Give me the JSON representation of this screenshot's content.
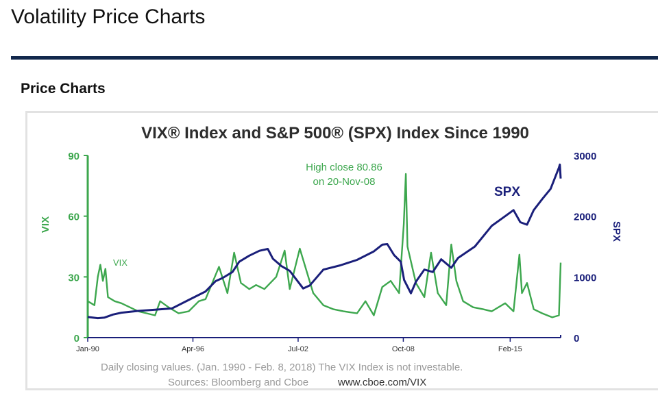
{
  "page": {
    "title": "Volatility Price Charts",
    "section_title": "Price Charts"
  },
  "colors": {
    "vix": "#3da74e",
    "spx": "#1a1f7a",
    "rule": "#12284c"
  },
  "chart_data": {
    "type": "line",
    "title": "VIX® Index and S&P 500® (SPX) Index Since 1990",
    "left_axis": {
      "label": "VIX",
      "min": 0,
      "max": 90,
      "ticks": [
        "0",
        "30",
        "60",
        "90"
      ]
    },
    "right_axis": {
      "label": "SPX",
      "min": 0,
      "max": 3000,
      "ticks": [
        "0",
        "1000",
        "2000",
        "3000"
      ]
    },
    "x_range": [
      1990.0,
      2018.1
    ],
    "x_ticks": [
      {
        "label": "Jan-90",
        "year": 1990.0
      },
      {
        "label": "Apr-96",
        "year": 1996.25
      },
      {
        "label": "Jul-02",
        "year": 2002.5
      },
      {
        "label": "Oct-08",
        "year": 2008.75
      },
      {
        "label": "Feb-15",
        "year": 2015.1
      }
    ],
    "annotation": {
      "line1": "High close 80.86",
      "line2": "on 20-Nov-08",
      "year": 2008.9,
      "value": 80.86
    },
    "series_labels": {
      "vix": "VIX",
      "spx": "SPX"
    },
    "series": [
      {
        "name": "VIX",
        "axis": "left",
        "points": [
          [
            1990.0,
            18
          ],
          [
            1990.4,
            16
          ],
          [
            1990.6,
            30
          ],
          [
            1990.75,
            36
          ],
          [
            1990.9,
            28
          ],
          [
            1991.05,
            34
          ],
          [
            1991.2,
            20
          ],
          [
            1991.6,
            18
          ],
          [
            1992.0,
            17
          ],
          [
            1992.5,
            15
          ],
          [
            1993.0,
            13
          ],
          [
            1993.5,
            12
          ],
          [
            1994.0,
            11
          ],
          [
            1994.3,
            18
          ],
          [
            1994.8,
            15
          ],
          [
            1995.4,
            12
          ],
          [
            1996.0,
            13
          ],
          [
            1996.6,
            18
          ],
          [
            1997.0,
            19
          ],
          [
            1997.8,
            35
          ],
          [
            1998.3,
            22
          ],
          [
            1998.7,
            42
          ],
          [
            1999.1,
            27
          ],
          [
            1999.6,
            24
          ],
          [
            2000.0,
            26
          ],
          [
            2000.5,
            24
          ],
          [
            2001.2,
            30
          ],
          [
            2001.7,
            43
          ],
          [
            2002.0,
            24
          ],
          [
            2002.6,
            44
          ],
          [
            2003.0,
            33
          ],
          [
            2003.4,
            22
          ],
          [
            2004.0,
            16
          ],
          [
            2004.6,
            14
          ],
          [
            2005.2,
            13
          ],
          [
            2006.0,
            12
          ],
          [
            2006.5,
            18
          ],
          [
            2007.0,
            11
          ],
          [
            2007.5,
            25
          ],
          [
            2008.0,
            28
          ],
          [
            2008.5,
            22
          ],
          [
            2008.78,
            56
          ],
          [
            2008.9,
            80.86
          ],
          [
            2009.0,
            45
          ],
          [
            2009.5,
            27
          ],
          [
            2010.0,
            20
          ],
          [
            2010.4,
            42
          ],
          [
            2010.8,
            22
          ],
          [
            2011.3,
            16
          ],
          [
            2011.6,
            46
          ],
          [
            2011.9,
            28
          ],
          [
            2012.3,
            18
          ],
          [
            2012.9,
            15
          ],
          [
            2013.5,
            14
          ],
          [
            2014.0,
            13
          ],
          [
            2014.8,
            17
          ],
          [
            2015.3,
            13
          ],
          [
            2015.65,
            41
          ],
          [
            2015.8,
            22
          ],
          [
            2016.1,
            27
          ],
          [
            2016.5,
            14
          ],
          [
            2017.0,
            12
          ],
          [
            2017.6,
            10
          ],
          [
            2018.0,
            11
          ],
          [
            2018.1,
            37
          ]
        ]
      },
      {
        "name": "SPX",
        "axis": "right",
        "points": [
          [
            1990.0,
            340
          ],
          [
            1990.6,
            320
          ],
          [
            1991.0,
            330
          ],
          [
            1991.5,
            380
          ],
          [
            1992.0,
            410
          ],
          [
            1993.0,
            440
          ],
          [
            1994.0,
            460
          ],
          [
            1995.0,
            480
          ],
          [
            1996.0,
            620
          ],
          [
            1997.0,
            760
          ],
          [
            1997.6,
            930
          ],
          [
            1998.0,
            980
          ],
          [
            1998.6,
            1080
          ],
          [
            1999.0,
            1250
          ],
          [
            1999.6,
            1350
          ],
          [
            2000.2,
            1430
          ],
          [
            2000.7,
            1460
          ],
          [
            2001.0,
            1300
          ],
          [
            2001.5,
            1180
          ],
          [
            2002.0,
            1100
          ],
          [
            2002.5,
            920
          ],
          [
            2002.8,
            810
          ],
          [
            2003.2,
            860
          ],
          [
            2004.0,
            1120
          ],
          [
            2005.0,
            1190
          ],
          [
            2006.0,
            1280
          ],
          [
            2007.0,
            1420
          ],
          [
            2007.5,
            1530
          ],
          [
            2007.8,
            1540
          ],
          [
            2008.2,
            1360
          ],
          [
            2008.6,
            1250
          ],
          [
            2008.8,
            950
          ],
          [
            2009.2,
            730
          ],
          [
            2009.5,
            920
          ],
          [
            2010.0,
            1120
          ],
          [
            2010.5,
            1080
          ],
          [
            2011.0,
            1290
          ],
          [
            2011.6,
            1150
          ],
          [
            2012.0,
            1310
          ],
          [
            2013.0,
            1500
          ],
          [
            2014.0,
            1840
          ],
          [
            2014.8,
            2000
          ],
          [
            2015.3,
            2100
          ],
          [
            2015.7,
            1900
          ],
          [
            2016.1,
            1860
          ],
          [
            2016.5,
            2100
          ],
          [
            2017.0,
            2280
          ],
          [
            2017.5,
            2450
          ],
          [
            2018.0,
            2800
          ],
          [
            2018.05,
            2850
          ],
          [
            2018.1,
            2620
          ]
        ]
      }
    ],
    "footnote": {
      "line1": "Daily closing values.  (Jan. 1990 - Feb. 8, 2018)   The VIX Index is not investable.",
      "sources": "Sources: Bloomberg and Cboe",
      "url": "www.cboe.com/VIX"
    }
  }
}
